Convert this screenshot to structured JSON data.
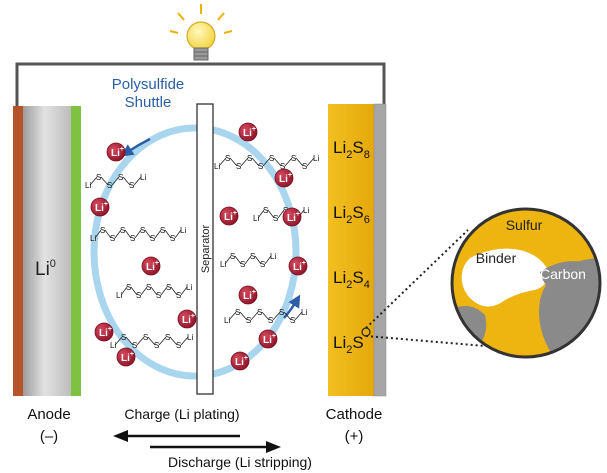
{
  "labels": {
    "polysulfide_line1": "Polysulfide",
    "polysulfide_line2": "Shuttle",
    "separator": "Separator",
    "anode_metal": "Li",
    "anode_metal_sup": "0",
    "anode": "Anode",
    "anode_sign": "(–)",
    "cathode": "Cathode",
    "cathode_sign": "(+)",
    "charge": "Charge (Li plating)",
    "discharge": "Discharge (Li stripping)"
  },
  "cathode_species": [
    {
      "base": "Li",
      "sub": "2",
      "rest": "S",
      "rest_sub": "8"
    },
    {
      "base": "Li",
      "sub": "2",
      "rest": "S",
      "rest_sub": "6"
    },
    {
      "base": "Li",
      "sub": "2",
      "rest": "S",
      "rest_sub": "4"
    },
    {
      "base": "Li",
      "sub": "2",
      "rest": "S",
      "rest_sub": ""
    }
  ],
  "zoom": {
    "sulfur": "Sulfur",
    "binder": "Binder",
    "carbon": "Carbon"
  },
  "ion": {
    "symbol": "Li",
    "charge": "+"
  },
  "chain": {
    "terminal": "Li",
    "atom": "S"
  },
  "colors": {
    "anode_copper": "#b5542a",
    "anode_green": "#7fc241",
    "cathode_yellow": "#eeb410",
    "shuttle_blue": "#a9d6ee",
    "ion_red": "#b3223a",
    "wire": "#555555"
  }
}
